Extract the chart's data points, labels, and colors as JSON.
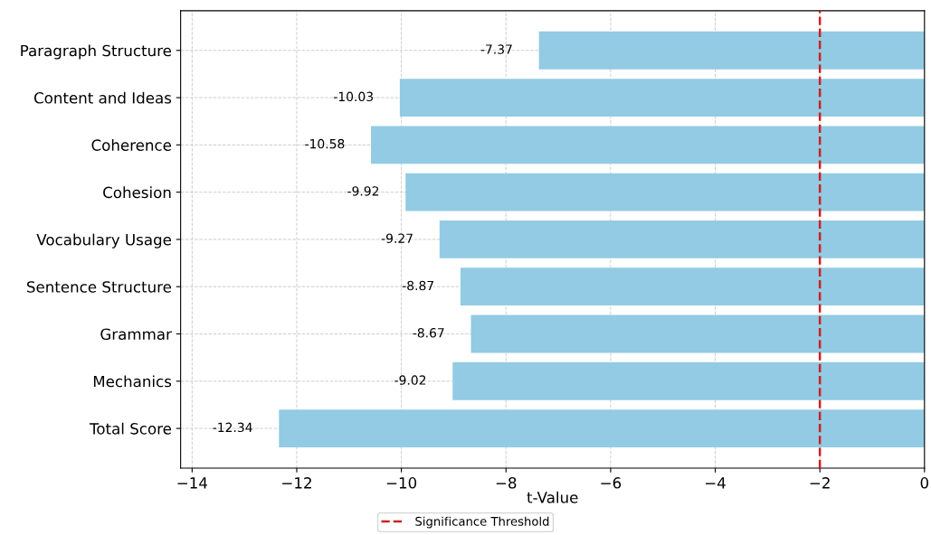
{
  "chart_data": {
    "type": "bar",
    "orientation": "horizontal",
    "categories": [
      "Paragraph Structure",
      "Content and Ideas",
      "Coherence",
      "Cohesion",
      "Vocabulary Usage",
      "Sentence Structure",
      "Grammar",
      "Mechanics",
      "Total Score"
    ],
    "values": [
      -7.37,
      -10.03,
      -10.58,
      -9.92,
      -9.27,
      -8.87,
      -8.67,
      -9.02,
      -12.34
    ],
    "color": "#92cbe3",
    "data_labels": true,
    "xlabel": "t-Value",
    "xlim": [
      -14.22,
      0
    ],
    "xticks": [
      {
        "value": -14,
        "label": "−14"
      },
      {
        "value": -12,
        "label": "−12"
      },
      {
        "value": -10,
        "label": "−10"
      },
      {
        "value": -8,
        "label": "−8"
      },
      {
        "value": -6,
        "label": "−6"
      },
      {
        "value": -4,
        "label": "−4"
      },
      {
        "value": -2,
        "label": "−2"
      },
      0
    ],
    "ref_lines": [
      {
        "axis": "x",
        "value": -2,
        "label": "Significance Threshold",
        "color": "#cc2222",
        "line_style": "dashed"
      }
    ],
    "grid": true,
    "legend": "bottom"
  }
}
